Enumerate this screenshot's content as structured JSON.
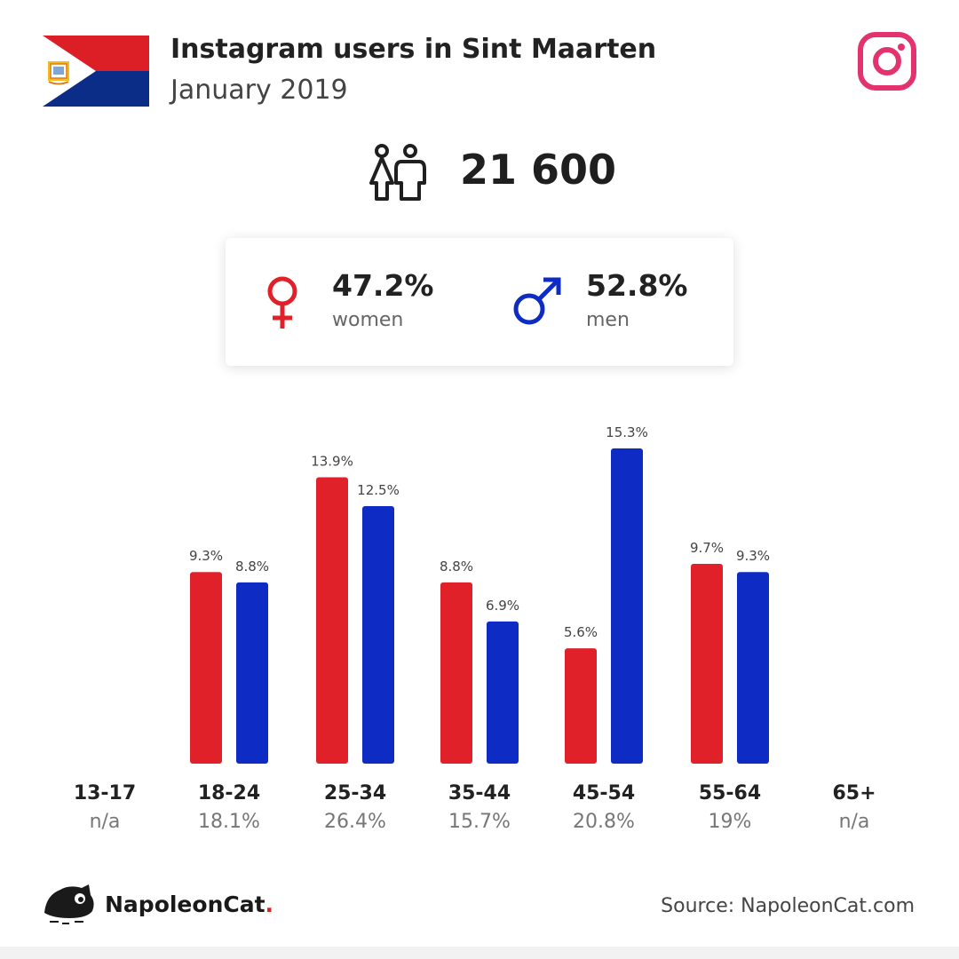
{
  "header": {
    "title": "Instagram users in Sint Maarten",
    "subtitle": "January 2019"
  },
  "total_users": "21 600",
  "gender": {
    "women": {
      "pct": "47.2%",
      "label": "women",
      "color": "#e0212a"
    },
    "men": {
      "pct": "52.8%",
      "label": "men",
      "color": "#0e2cc4"
    }
  },
  "chart_data": {
    "type": "bar",
    "categories": [
      "13-17",
      "18-24",
      "25-34",
      "35-44",
      "45-54",
      "55-64",
      "65+"
    ],
    "category_shares": [
      "n/a",
      "18.1%",
      "26.4%",
      "15.7%",
      "20.8%",
      "19%",
      "n/a"
    ],
    "series": [
      {
        "values": [
          null,
          9.3,
          13.9,
          8.8,
          5.6,
          9.7,
          null
        ],
        "labels": [
          "",
          "9.3%",
          "13.9%",
          "8.8%",
          "5.6%",
          "9.7%",
          ""
        ],
        "color": "#e0212a"
      },
      {
        "values": [
          null,
          8.8,
          12.5,
          6.9,
          15.3,
          9.3,
          null
        ],
        "labels": [
          "",
          "8.8%",
          "12.5%",
          "6.9%",
          "15.3%",
          "9.3%",
          ""
        ],
        "color": "#0e2cc4"
      }
    ],
    "grid": false
  },
  "footer": {
    "brand_name": "NapoleonCat",
    "brand_dot": ".",
    "source": "Source: NapoleonCat.com"
  },
  "icons": {
    "flag": "sint-maarten-flag-icon",
    "instagram": "instagram-icon",
    "people": "people-icon",
    "female": "female-icon",
    "male": "male-icon",
    "brand": "napoleoncat-logo"
  },
  "colors": {
    "instagram": "#e4326f"
  }
}
